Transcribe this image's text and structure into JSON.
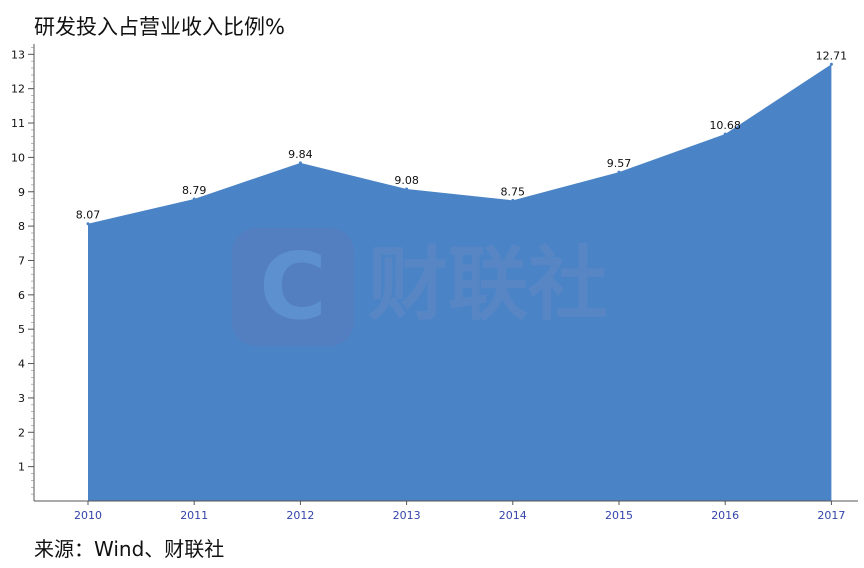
{
  "title": "研发投入占营业收入比例%",
  "source": "来源：Wind、财联社",
  "watermark": {
    "text": "财联社",
    "letter": "C"
  },
  "colors": {
    "area": "#4a84c6",
    "axis": "#555555",
    "x_tick_text": "#3344aa",
    "label_text": "#111111"
  },
  "chart_data": {
    "type": "area",
    "title": "研发投入占营业收入比例%",
    "xlabel": "",
    "ylabel": "",
    "categories": [
      "2010",
      "2011",
      "2012",
      "2013",
      "2014",
      "2015",
      "2016",
      "2017"
    ],
    "series": [
      {
        "values": [
          8.07,
          8.79,
          9.84,
          9.08,
          8.75,
          9.57,
          10.68,
          12.71
        ],
        "labels": [
          "8.07",
          "8.79",
          "9.84",
          "9.08",
          "8.75",
          "9.57",
          "10.68",
          "12.71"
        ]
      }
    ],
    "ylim": [
      0,
      13.3
    ],
    "y_ticks": [
      "1",
      "2",
      "3",
      "4",
      "5",
      "6",
      "7",
      "8",
      "9",
      "10",
      "11",
      "12",
      "13"
    ],
    "grid": false,
    "legend": "none"
  }
}
